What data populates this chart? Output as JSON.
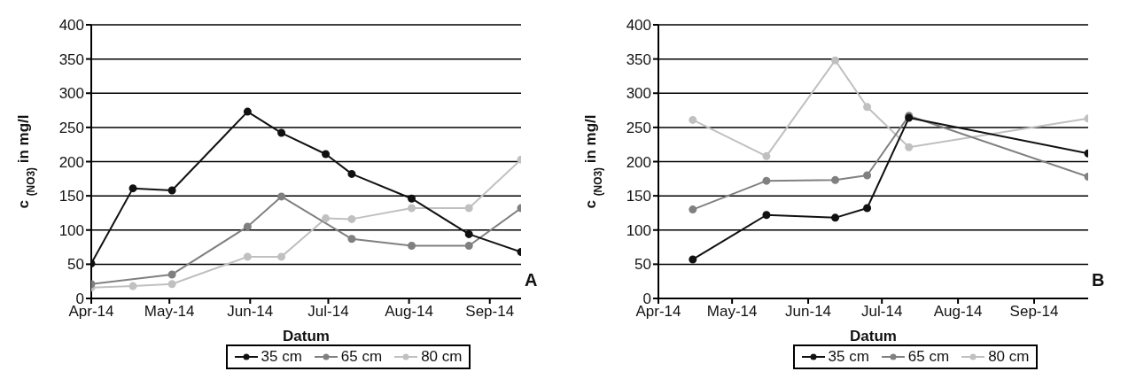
{
  "chart_data": [
    {
      "type": "line",
      "xlabel": "Datum",
      "ylabel": "c $_{(NO3)}$ in mg/l",
      "annotations": [
        "A"
      ],
      "xlim": [
        "2014-04-01",
        "2014-09-13"
      ],
      "xticks": [
        {
          "value": "2014-04-01",
          "label": "Apr-14"
        },
        {
          "value": "2014-05-01",
          "label": "May-14"
        },
        {
          "value": "2014-06-01",
          "label": "Jun-14"
        },
        {
          "value": "2014-07-01",
          "label": "Jul-14"
        },
        {
          "value": "2014-08-01",
          "label": "Aug-14"
        },
        {
          "value": "2014-09-01",
          "label": "Sep-14"
        }
      ],
      "ylim": [
        0,
        400
      ],
      "yticks": [
        0,
        50,
        100,
        150,
        200,
        250,
        300,
        350,
        400
      ],
      "grid": "y",
      "legend": "bottom",
      "marker": "circle",
      "series": [
        {
          "name": "35 cm",
          "color": "#111111",
          "x": [
            "2014-04-01",
            "2014-04-17",
            "2014-05-02",
            "2014-05-31",
            "2014-06-13",
            "2014-06-30",
            "2014-07-10",
            "2014-08-02",
            "2014-08-24",
            "2014-09-13"
          ],
          "values": [
            51,
            161,
            158,
            273,
            242,
            211,
            182,
            146,
            94,
            68
          ]
        },
        {
          "name": "65 cm",
          "color": "#808080",
          "x": [
            "2014-04-01",
            "2014-05-02",
            "2014-05-31",
            "2014-06-13",
            "2014-07-10",
            "2014-08-02",
            "2014-08-24",
            "2014-09-13"
          ],
          "values": [
            21,
            35,
            105,
            149,
            87,
            77,
            77,
            132
          ]
        },
        {
          "name": "80 cm",
          "color": "#c0c0c0",
          "x": [
            "2014-04-01",
            "2014-04-17",
            "2014-05-02",
            "2014-05-31",
            "2014-06-13",
            "2014-06-30",
            "2014-07-10",
            "2014-08-02",
            "2014-08-24",
            "2014-09-13"
          ],
          "values": [
            16,
            18,
            21,
            61,
            61,
            117,
            116,
            132,
            132,
            203
          ]
        }
      ]
    },
    {
      "type": "line",
      "xlabel": "Datum",
      "ylabel": "c $_{(NO3)}$ in mg/l",
      "annotations": [
        "B"
      ],
      "xlim": [
        "2014-04-01",
        "2014-09-23"
      ],
      "xticks": [
        {
          "value": "2014-04-01",
          "label": "Apr-14"
        },
        {
          "value": "2014-05-01",
          "label": "May-14"
        },
        {
          "value": "2014-06-01",
          "label": "Jun-14"
        },
        {
          "value": "2014-07-01",
          "label": "Jul-14"
        },
        {
          "value": "2014-08-01",
          "label": "Aug-14"
        },
        {
          "value": "2014-09-01",
          "label": "Sep-14"
        }
      ],
      "ylim": [
        0,
        400
      ],
      "yticks": [
        0,
        50,
        100,
        150,
        200,
        250,
        300,
        350,
        400
      ],
      "grid": "y",
      "legend": "bottom",
      "marker": "circle",
      "x": [
        "2014-04-15",
        "2014-05-15",
        "2014-06-12",
        "2014-06-25",
        "2014-07-12",
        "2014-09-23"
      ],
      "series": [
        {
          "name": "35 cm",
          "color": "#111111",
          "values": [
            57,
            122,
            118,
            132,
            264,
            212
          ]
        },
        {
          "name": "65 cm",
          "color": "#808080",
          "values": [
            130,
            172,
            173,
            180,
            267,
            178
          ]
        },
        {
          "name": "80 cm",
          "color": "#c0c0c0",
          "values": [
            261,
            208,
            348,
            280,
            221,
            263
          ]
        }
      ]
    }
  ]
}
